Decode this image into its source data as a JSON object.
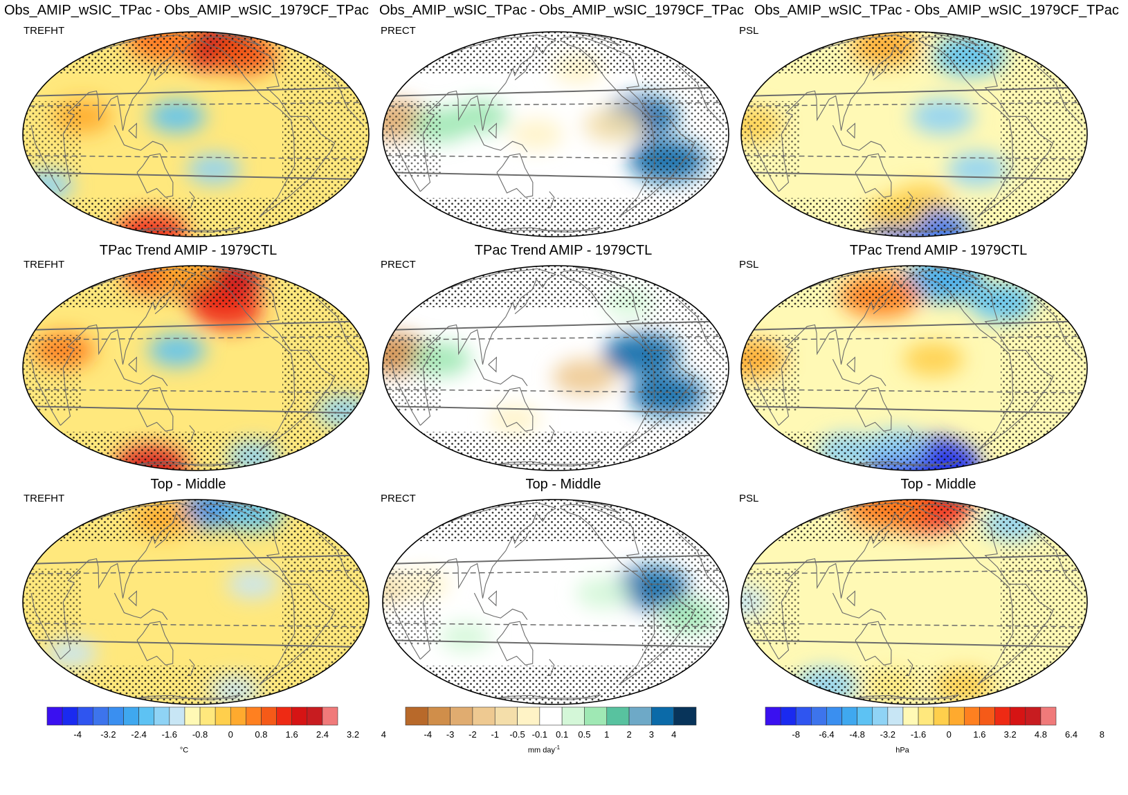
{
  "row_titles": {
    "row1": [
      "Obs_AMIP_wSIC_TPac - Obs_AMIP_wSIC_1979CF_TPac",
      "Obs_AMIP_wSIC_TPac - Obs_AMIP_wSIC_1979CF_TPac",
      "Obs_AMIP_wSIC_TPac - Obs_AMIP_wSIC_1979CF_TPac"
    ],
    "row2": [
      "TPac Trend AMIP - 1979CTL",
      "TPac Trend AMIP - 1979CTL",
      "TPac Trend AMIP - 1979CTL"
    ],
    "row3": [
      "Top - Middle",
      "Top - Middle",
      "Top - Middle"
    ]
  },
  "variables": [
    "TREFHT",
    "PRECT",
    "PSL"
  ],
  "colors": {
    "temp_palette": [
      "#3a10f0",
      "#1a2af0",
      "#2f55f0",
      "#3d74ec",
      "#3a8ff0",
      "#3fa8ef",
      "#5dc2f3",
      "#8fd3f5",
      "#c8e6f5",
      "#fff9b5",
      "#ffe87d",
      "#ffcf4c",
      "#ffaa2e",
      "#ff8020",
      "#f55a18",
      "#ee2a14",
      "#d61414",
      "#c81c20",
      "#f07a7a"
    ],
    "precip_palette": [
      "#b8692a",
      "#d08e4a",
      "#e0ac70",
      "#eec991",
      "#f4deaa",
      "#fff3c6",
      "#ffffff",
      "#d4f7d8",
      "#9fe8b4",
      "#58c29f",
      "#6ea9c7",
      "#0b6aa8",
      "#08345a"
    ],
    "coast": "#6a6a6a",
    "grid": "#6a6a6a"
  },
  "chart_data": [
    {
      "type": "heatmap",
      "title": "Obs_AMIP_wSIC_TPac - Obs_AMIP_wSIC_1979CF_TPac",
      "variable": "TREFHT",
      "palette": "temp",
      "features": [
        {
          "lon": -150,
          "lat": 55,
          "value": 2.8
        },
        {
          "lon": -120,
          "lat": 62,
          "value": 3.6
        },
        {
          "lon": -100,
          "lat": 50,
          "value": 2.2
        },
        {
          "lon": 80,
          "lat": 68,
          "value": 2.4
        },
        {
          "lon": 110,
          "lat": 62,
          "value": 2.0
        },
        {
          "lon": 60,
          "lat": 10,
          "value": 1.4
        },
        {
          "lon": 160,
          "lat": 10,
          "value": -1.2
        },
        {
          "lon": 0,
          "lat": -30,
          "value": -1.0
        },
        {
          "lon": 0,
          "lat": -75,
          "value": 3.0
        },
        {
          "lon": -160,
          "lat": -20,
          "value": -0.8
        }
      ]
    },
    {
      "type": "heatmap",
      "title": "Obs_AMIP_wSIC_TPac - Obs_AMIP_wSIC_1979CF_TPac",
      "variable": "PRECT",
      "palette": "precip",
      "features": [
        {
          "lon": -90,
          "lat": 10,
          "value": 3.2
        },
        {
          "lon": -60,
          "lat": -15,
          "value": 3.6
        },
        {
          "lon": 10,
          "lat": 8,
          "value": -3.0
        },
        {
          "lon": 60,
          "lat": 5,
          "value": 1.5
        },
        {
          "lon": -120,
          "lat": 5,
          "value": -1.5
        },
        {
          "lon": 100,
          "lat": 10,
          "value": 1.2
        },
        {
          "lon": 160,
          "lat": 0,
          "value": -0.8
        },
        {
          "lon": -150,
          "lat": 40,
          "value": -0.5
        }
      ]
    },
    {
      "type": "heatmap",
      "title": "Obs_AMIP_wSIC_TPac - Obs_AMIP_wSIC_1979CF_TPac",
      "variable": "PSL",
      "palette": "psl",
      "features": [
        {
          "lon": -90,
          "lat": 50,
          "value": -3.0
        },
        {
          "lon": -150,
          "lat": 10,
          "value": -2.0
        },
        {
          "lon": 10,
          "lat": 5,
          "value": 1.6
        },
        {
          "lon": 120,
          "lat": 60,
          "value": 2.5
        },
        {
          "lon": -170,
          "lat": -40,
          "value": 1.5
        },
        {
          "lon": -150,
          "lat": -75,
          "value": -6.0
        },
        {
          "lon": 150,
          "lat": -50,
          "value": 1.6
        },
        {
          "lon": -110,
          "lat": -20,
          "value": -1.6
        }
      ]
    },
    {
      "type": "heatmap",
      "title": "TPac Trend AMIP - 1979CTL",
      "variable": "TREFHT",
      "palette": "temp",
      "features": [
        {
          "lon": -150,
          "lat": 55,
          "value": 3.6
        },
        {
          "lon": -120,
          "lat": 60,
          "value": 3.8
        },
        {
          "lon": -140,
          "lat": 35,
          "value": 2.8
        },
        {
          "lon": 80,
          "lat": 65,
          "value": 2.4
        },
        {
          "lon": 150,
          "lat": 70,
          "value": 1.6
        },
        {
          "lon": 40,
          "lat": 10,
          "value": 1.8
        },
        {
          "lon": 160,
          "lat": 10,
          "value": -1.2
        },
        {
          "lon": -10,
          "lat": -25,
          "value": -1.0
        },
        {
          "lon": 0,
          "lat": -75,
          "value": 3.2
        },
        {
          "lon": -60,
          "lat": -60,
          "value": -0.8
        }
      ]
    },
    {
      "type": "heatmap",
      "title": "TPac Trend AMIP - 1979CTL",
      "variable": "PRECT",
      "palette": "precip",
      "features": [
        {
          "lon": -90,
          "lat": 8,
          "value": 3.6
        },
        {
          "lon": -60,
          "lat": -15,
          "value": 3.4
        },
        {
          "lon": 10,
          "lat": 8,
          "value": -3.2
        },
        {
          "lon": -150,
          "lat": -5,
          "value": -2.0
        },
        {
          "lon": 60,
          "lat": 5,
          "value": 1.5
        },
        {
          "lon": -80,
          "lat": 40,
          "value": 0.5
        },
        {
          "lon": 130,
          "lat": -30,
          "value": -0.5
        }
      ]
    },
    {
      "type": "heatmap",
      "title": "TPac Trend AMIP - 1979CTL",
      "variable": "PSL",
      "palette": "psl",
      "features": [
        {
          "lon": -120,
          "lat": 60,
          "value": -4.0
        },
        {
          "lon": -60,
          "lat": 40,
          "value": -2.4
        },
        {
          "lon": 10,
          "lat": 5,
          "value": 2.4
        },
        {
          "lon": 130,
          "lat": 45,
          "value": 4.0
        },
        {
          "lon": -160,
          "lat": 5,
          "value": 1.6
        },
        {
          "lon": -140,
          "lat": -75,
          "value": -8.0
        },
        {
          "lon": 60,
          "lat": -55,
          "value": -2.0
        },
        {
          "lon": 150,
          "lat": -50,
          "value": -1.6
        }
      ]
    },
    {
      "type": "heatmap",
      "title": "Top - Middle",
      "variable": "TREFHT",
      "palette": "temp",
      "features": [
        {
          "lon": -140,
          "lat": 65,
          "value": -2.4
        },
        {
          "lon": -60,
          "lat": 60,
          "value": -1.6
        },
        {
          "lon": 120,
          "lat": 55,
          "value": 1.6
        },
        {
          "lon": 0,
          "lat": 0,
          "value": 0.6
        },
        {
          "lon": -120,
          "lat": 10,
          "value": -0.5
        },
        {
          "lon": 30,
          "lat": -30,
          "value": -0.6
        },
        {
          "lon": 100,
          "lat": -60,
          "value": 0.6
        },
        {
          "lon": -100,
          "lat": -60,
          "value": -0.6
        }
      ]
    },
    {
      "type": "heatmap",
      "title": "Top - Middle",
      "variable": "PRECT",
      "palette": "precip",
      "features": [
        {
          "lon": -80,
          "lat": 8,
          "value": 3.4
        },
        {
          "lon": -40,
          "lat": -8,
          "value": 1.2
        },
        {
          "lon": 0,
          "lat": 8,
          "value": -1.2
        },
        {
          "lon": -130,
          "lat": 5,
          "value": 1.0
        },
        {
          "lon": 40,
          "lat": 10,
          "value": -0.5
        },
        {
          "lon": 80,
          "lat": -20,
          "value": 0.5
        }
      ]
    },
    {
      "type": "heatmap",
      "title": "Top - Middle",
      "variable": "PSL",
      "palette": "psl",
      "features": [
        {
          "lon": -150,
          "lat": 70,
          "value": 6.0
        },
        {
          "lon": 100,
          "lat": 68,
          "value": 4.0
        },
        {
          "lon": -20,
          "lat": 50,
          "value": -1.6
        },
        {
          "lon": 0,
          "lat": 0,
          "value": -1.0
        },
        {
          "lon": 20,
          "lat": -55,
          "value": -2.0
        },
        {
          "lon": -90,
          "lat": -55,
          "value": 1.6
        },
        {
          "lon": 140,
          "lat": -55,
          "value": 1.0
        }
      ]
    }
  ],
  "colorbars": [
    {
      "name": "temperature",
      "ticks": [
        "-4",
        "-3.2",
        "-2.4",
        "-1.6",
        "-0.8",
        "0",
        "0.8",
        "1.6",
        "2.4",
        "3.2",
        "4"
      ],
      "unit": "°C",
      "unit_sup": ""
    },
    {
      "name": "precipitation",
      "ticks": [
        "-4",
        "-3",
        "-2",
        "-1",
        "-0.5",
        "-0.1",
        "0.1",
        "0.5",
        "1",
        "2",
        "3",
        "4"
      ],
      "unit": "mm day",
      "unit_sup": "-1"
    },
    {
      "name": "pressure",
      "ticks": [
        "-8",
        "-6.4",
        "-4.8",
        "-3.2",
        "-1.6",
        "0",
        "1.6",
        "3.2",
        "4.8",
        "6.4",
        "8"
      ],
      "unit": "hPa",
      "unit_sup": ""
    }
  ]
}
